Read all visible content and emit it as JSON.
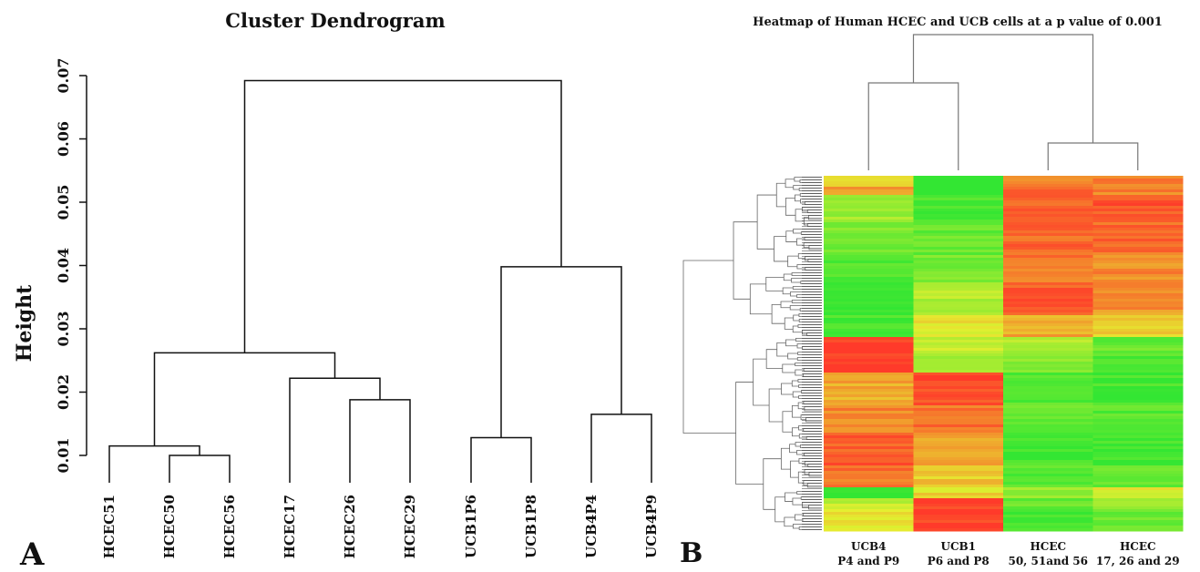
{
  "chart_data": [
    {
      "type": "dendrogram",
      "panel_label": "A",
      "title": "Cluster Dendrogram",
      "ylabel": "Height",
      "xlabel": "",
      "ylim": [
        0.01,
        0.07
      ],
      "yticks": [
        0.01,
        0.02,
        0.03,
        0.04,
        0.05,
        0.06,
        0.07
      ],
      "leaves": [
        "HCEC51",
        "HCEC50",
        "HCEC56",
        "HCEC17",
        "HCEC26",
        "HCEC29",
        "UCB1P6",
        "UCB1P8",
        "UCB4P4",
        "UCB4P9"
      ],
      "merges": [
        {
          "a": -2,
          "b": -3,
          "height": 0.01
        },
        {
          "a": -1,
          "b": 1,
          "height": 0.0115
        },
        {
          "a": -5,
          "b": -6,
          "height": 0.0188
        },
        {
          "a": -4,
          "b": 3,
          "height": 0.0222
        },
        {
          "a": 2,
          "b": 4,
          "height": 0.0262
        },
        {
          "a": -7,
          "b": -8,
          "height": 0.0128
        },
        {
          "a": -9,
          "b": -10,
          "height": 0.0165
        },
        {
          "a": 6,
          "b": 7,
          "height": 0.0398
        },
        {
          "a": 5,
          "b": 8,
          "height": 0.0692
        }
      ]
    },
    {
      "type": "heatmap",
      "panel_label": "B",
      "title": "Heatmap of Human HCEC and UCB cells at a p value of 0.001",
      "columns": [
        {
          "line1": "UCB4",
          "line2": "P4 and P9"
        },
        {
          "line1": "UCB1",
          "line2": "P6 and P8"
        },
        {
          "line1": "HCEC",
          "line2": "50, 51and 56"
        },
        {
          "line1": "HCEC",
          "line2": "17, 26 and 29"
        }
      ],
      "color_scale": [
        "#33e633",
        "#e5ef30",
        "#ff3a2a"
      ],
      "row_blocks": [
        {
          "rows": 4,
          "values": [
            0.55,
            0.0,
            0.82,
            0.8
          ]
        },
        {
          "rows": 3,
          "values": [
            0.75,
            0.0,
            0.85,
            0.78
          ]
        },
        {
          "rows": 10,
          "values": [
            0.3,
            0.05,
            0.9,
            0.92
          ]
        },
        {
          "rows": 12,
          "values": [
            0.2,
            0.15,
            0.88,
            0.86
          ]
        },
        {
          "rows": 10,
          "values": [
            0.1,
            0.2,
            0.84,
            0.78
          ]
        },
        {
          "rows": 12,
          "values": [
            0.02,
            0.35,
            0.9,
            0.75
          ]
        },
        {
          "rows": 8,
          "values": [
            0.05,
            0.52,
            0.7,
            0.6
          ]
        },
        {
          "rows": 6,
          "values": [
            1.0,
            0.4,
            0.35,
            0.15
          ]
        },
        {
          "rows": 7,
          "values": [
            1.0,
            0.3,
            0.25,
            0.08
          ]
        },
        {
          "rows": 12,
          "values": [
            0.7,
            0.95,
            0.1,
            0.05
          ]
        },
        {
          "rows": 10,
          "values": [
            0.8,
            0.85,
            0.15,
            0.1
          ]
        },
        {
          "rows": 12,
          "values": [
            0.9,
            0.7,
            0.05,
            0.05
          ]
        },
        {
          "rows": 8,
          "values": [
            0.85,
            0.6,
            0.1,
            0.15
          ]
        },
        {
          "rows": 4,
          "values": [
            0.0,
            0.55,
            0.3,
            0.5
          ]
        },
        {
          "rows": 4,
          "values": [
            0.4,
            1.0,
            0.15,
            0.3
          ]
        },
        {
          "rows": 8,
          "values": [
            0.5,
            1.0,
            0.05,
            0.15
          ]
        }
      ]
    }
  ]
}
